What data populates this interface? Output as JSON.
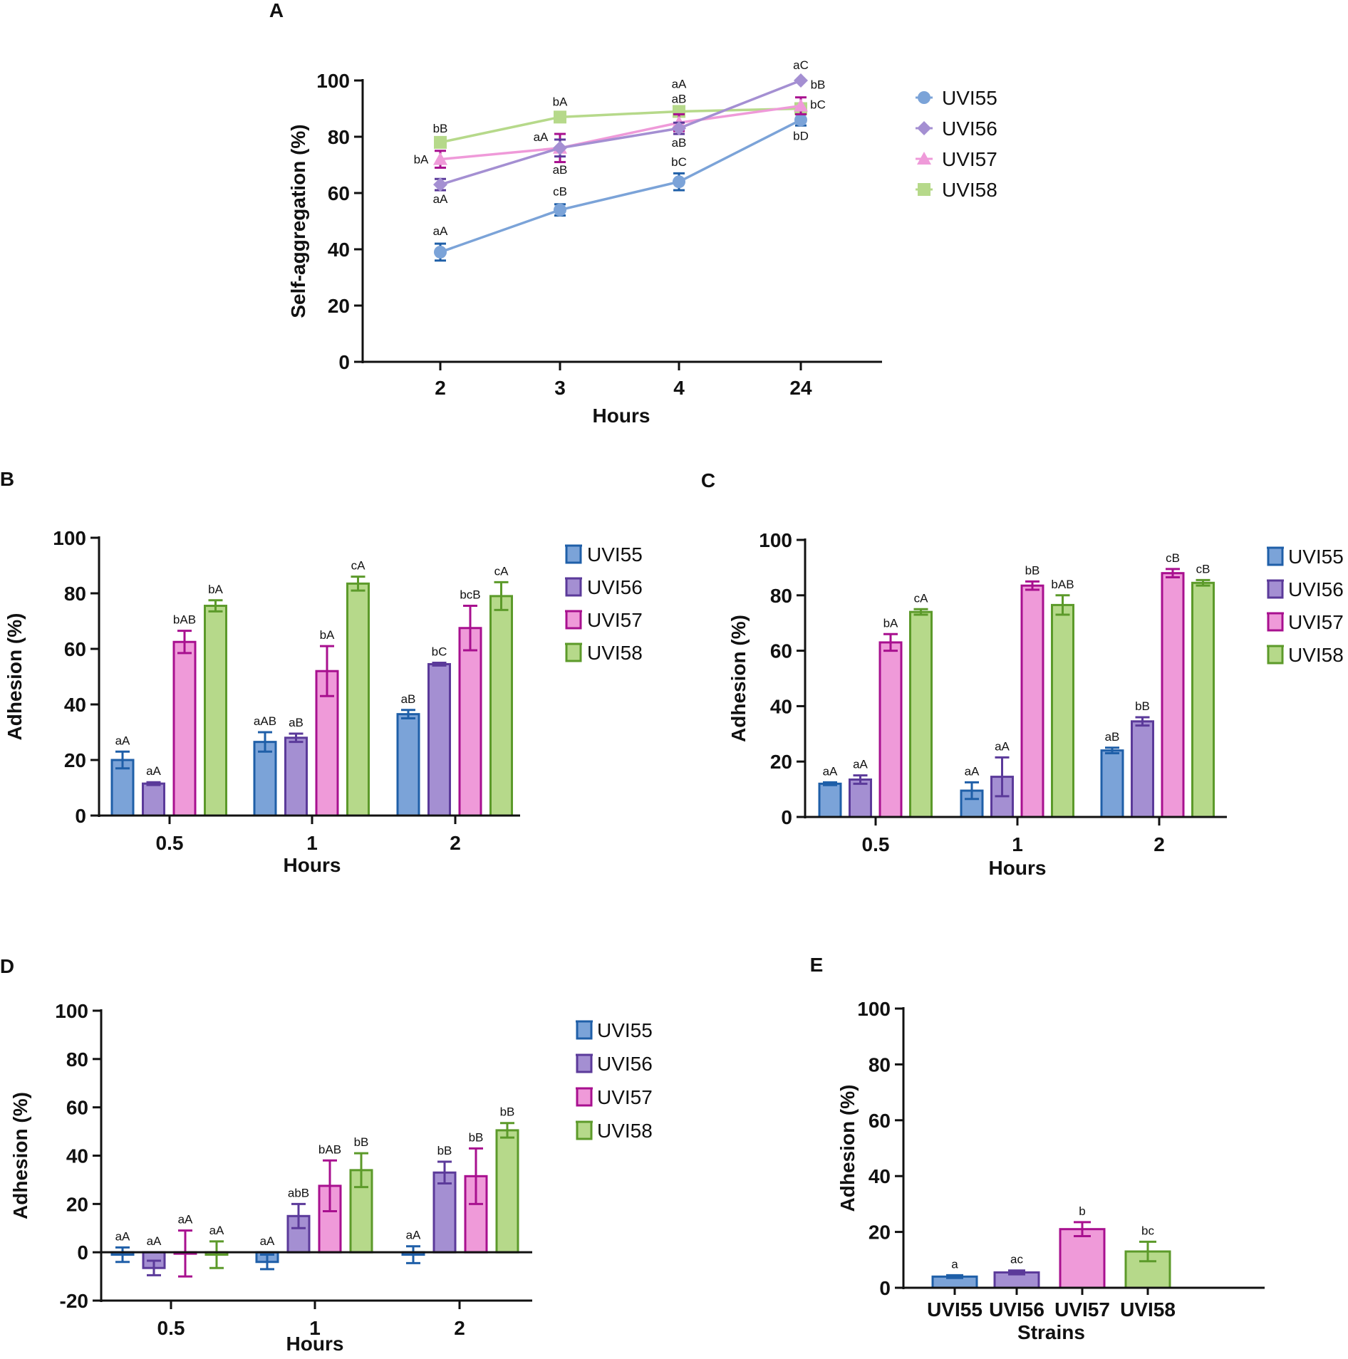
{
  "colors": {
    "UVI55": {
      "fill": "#7ba3d8",
      "edge": "#1f5fa8"
    },
    "UVI56": {
      "fill": "#a48fd2",
      "edge": "#5b3a9a"
    },
    "UVI57": {
      "fill": "#ef9ad9",
      "edge": "#a8108f"
    },
    "UVI58": {
      "fill": "#b6d98a",
      "edge": "#5c9a2a"
    },
    "line_UVI55": "#7ba3d8",
    "line_UVI56": "#a48fd2",
    "line_UVI57": "#ef9ad9",
    "line_UVI58": "#b6d98a",
    "axis": "#111111"
  },
  "chart_data": [
    {
      "panel": "A",
      "type": "line",
      "xlabel": "Hours",
      "ylabel": "Self-aggregation (%)",
      "categories": [
        "2",
        "3",
        "4",
        "24"
      ],
      "ylim": [
        0,
        100
      ],
      "yticks": [
        "0",
        "20",
        "40",
        "60",
        "80",
        "100"
      ],
      "legend": [
        "UVI55",
        "UVI56",
        "UVI57",
        "UVI58"
      ],
      "series": [
        {
          "name": "UVI55",
          "marker": "circle",
          "values": [
            39,
            54,
            64,
            86
          ],
          "errors": [
            3,
            2,
            3,
            2
          ],
          "labels": [
            "aA",
            "cB",
            "bC",
            "bD"
          ]
        },
        {
          "name": "UVI56",
          "marker": "diamond",
          "values": [
            63,
            76,
            83,
            100
          ],
          "errors": [
            2,
            3,
            2,
            0
          ],
          "labels": [
            "aA",
            "aB",
            "aB",
            "aC"
          ]
        },
        {
          "name": "UVI57",
          "marker": "triangle",
          "values": [
            72,
            76,
            85,
            91
          ],
          "errors": [
            3,
            5,
            3,
            3
          ],
          "labels": [
            "bA",
            "aA",
            "aB",
            "bC"
          ]
        },
        {
          "name": "UVI58",
          "marker": "square",
          "values": [
            78,
            87,
            89,
            90
          ],
          "errors": [
            0,
            0,
            0,
            0
          ],
          "labels": [
            "bB",
            "bA",
            "aA",
            "bB"
          ]
        }
      ]
    },
    {
      "panel": "B",
      "type": "bar",
      "xlabel": "Hours",
      "ylabel": "Adhesion (%)",
      "categories": [
        "0.5",
        "1",
        "2"
      ],
      "ylim": [
        0,
        100
      ],
      "yticks": [
        "0",
        "20",
        "40",
        "60",
        "80",
        "100"
      ],
      "legend": [
        "UVI55",
        "UVI56",
        "UVI57",
        "UVI58"
      ],
      "series": [
        {
          "name": "UVI55",
          "values": [
            20,
            26.5,
            36.5
          ],
          "errors": [
            3,
            3.5,
            1.5
          ],
          "labels": [
            "aA",
            "aAB",
            "aB"
          ]
        },
        {
          "name": "UVI56",
          "values": [
            11.5,
            28,
            54.5
          ],
          "errors": [
            0.5,
            1.5,
            0.5
          ],
          "labels": [
            "aA",
            "aB",
            "bC"
          ]
        },
        {
          "name": "UVI57",
          "values": [
            62.5,
            52,
            67.5
          ],
          "errors": [
            4,
            9,
            8
          ],
          "labels": [
            "bAB",
            "bA",
            "bcB"
          ]
        },
        {
          "name": "UVI58",
          "values": [
            75.5,
            83.5,
            79
          ],
          "errors": [
            2,
            2.5,
            5
          ],
          "labels": [
            "bA",
            "cA",
            "cA"
          ]
        }
      ]
    },
    {
      "panel": "C",
      "type": "bar",
      "xlabel": "Hours",
      "ylabel": "Adhesion (%)",
      "categories": [
        "0.5",
        "1",
        "2"
      ],
      "ylim": [
        0,
        100
      ],
      "yticks": [
        "0",
        "20",
        "40",
        "60",
        "80",
        "100"
      ],
      "legend": [
        "UVI55",
        "UVI56",
        "UVI57",
        "UVI58"
      ],
      "series": [
        {
          "name": "UVI55",
          "values": [
            12,
            9.5,
            24
          ],
          "errors": [
            0.5,
            3,
            1
          ],
          "labels": [
            "aA",
            "aA",
            "aB"
          ]
        },
        {
          "name": "UVI56",
          "values": [
            13.5,
            14.5,
            34.5
          ],
          "errors": [
            1.5,
            7,
            1.5
          ],
          "labels": [
            "aA",
            "aA",
            "bB"
          ]
        },
        {
          "name": "UVI57",
          "values": [
            63,
            83.5,
            88
          ],
          "errors": [
            3,
            1.5,
            1.5
          ],
          "labels": [
            "bA",
            "bB",
            "cB"
          ]
        },
        {
          "name": "UVI58",
          "values": [
            74,
            76.5,
            84.5
          ],
          "errors": [
            1,
            3.5,
            1
          ],
          "labels": [
            "cA",
            "bAB",
            "cB"
          ]
        }
      ]
    },
    {
      "panel": "D",
      "type": "bar",
      "xlabel": "Hours",
      "ylabel": "Adhesion (%)",
      "categories": [
        "0.5",
        "1",
        "2"
      ],
      "ylim": [
        -20,
        100
      ],
      "yticks": [
        "-20",
        "0",
        "20",
        "40",
        "60",
        "80",
        "100"
      ],
      "legend": [
        "UVI55",
        "UVI56",
        "UVI57",
        "UVI58"
      ],
      "series": [
        {
          "name": "UVI55",
          "values": [
            -1,
            -4,
            -1
          ],
          "errors": [
            3,
            3,
            3.5
          ],
          "labels": [
            "aA",
            "aA",
            "aA"
          ]
        },
        {
          "name": "UVI56",
          "values": [
            -6.5,
            15,
            33
          ],
          "errors": [
            3,
            5,
            4.5
          ],
          "labels": [
            "aA",
            "abB",
            "bB"
          ]
        },
        {
          "name": "UVI57",
          "values": [
            -0.5,
            27.5,
            31.5
          ],
          "errors": [
            9.5,
            10.5,
            11.5
          ],
          "labels": [
            "aA",
            "bAB",
            "bB"
          ]
        },
        {
          "name": "UVI58",
          "values": [
            -1,
            34,
            50.5
          ],
          "errors": [
            5.5,
            7,
            3
          ],
          "labels": [
            "aA",
            "bB",
            "bB"
          ]
        }
      ]
    },
    {
      "panel": "E",
      "type": "bar",
      "xlabel": "Strains",
      "ylabel": "Adhesion (%)",
      "categories": [
        "UVI55",
        "UVI56",
        "UVI57",
        "UVI58"
      ],
      "ylim": [
        0,
        100
      ],
      "yticks": [
        "0",
        "20",
        "40",
        "60",
        "80",
        "100"
      ],
      "values": [
        4,
        5.5,
        21,
        13
      ],
      "errors": [
        0.5,
        0.7,
        2.5,
        3.5
      ],
      "labels": [
        "a",
        "ac",
        "b",
        "bc"
      ]
    }
  ]
}
